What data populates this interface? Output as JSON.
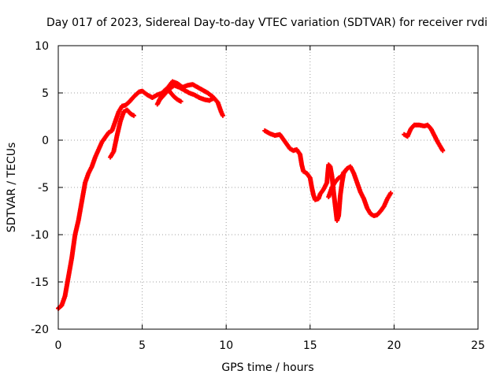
{
  "chart_data": {
    "type": "scatter",
    "title": "Day 017 of 2023, Sidereal Day-to-day VTEC variation (SDTVAR) for receiver rvdi",
    "xlabel": "GPS time / hours",
    "ylabel": "SDTVAR / TECUs",
    "xlim": [
      0,
      25
    ],
    "ylim": [
      -20,
      10
    ],
    "xticks": [
      0,
      5,
      10,
      15,
      20,
      25
    ],
    "yticks": [
      -20,
      -15,
      -10,
      -5,
      0,
      5,
      10
    ],
    "grid": true,
    "marker": "+",
    "series": [
      {
        "name": "SDTVAR",
        "color": "#ff0000",
        "segments": [
          [
            [
              0.0,
              -17.8
            ],
            [
              0.2,
              -17.5
            ],
            [
              0.4,
              -16.5
            ],
            [
              0.6,
              -14.5
            ],
            [
              0.8,
              -12.5
            ],
            [
              1.0,
              -10.0
            ],
            [
              1.2,
              -8.5
            ],
            [
              1.4,
              -6.5
            ],
            [
              1.6,
              -4.5
            ],
            [
              1.8,
              -3.5
            ],
            [
              2.0,
              -2.8
            ],
            [
              2.2,
              -1.8
            ],
            [
              2.4,
              -1.0
            ],
            [
              2.6,
              -0.2
            ],
            [
              2.8,
              0.3
            ],
            [
              3.0,
              0.8
            ],
            [
              3.2,
              1.0
            ],
            [
              3.4,
              2.0
            ],
            [
              3.6,
              3.0
            ],
            [
              3.8,
              3.6
            ],
            [
              4.0,
              3.7
            ],
            [
              4.2,
              4.0
            ],
            [
              4.5,
              4.6
            ],
            [
              4.8,
              5.1
            ],
            [
              5.0,
              5.2
            ],
            [
              5.3,
              4.8
            ],
            [
              5.6,
              4.5
            ],
            [
              5.9,
              4.8
            ],
            [
              6.2,
              5.0
            ],
            [
              6.5,
              5.5
            ],
            [
              6.8,
              6.2
            ],
            [
              7.1,
              6.0
            ],
            [
              7.4,
              5.6
            ],
            [
              7.7,
              5.8
            ],
            [
              8.0,
              5.9
            ],
            [
              8.3,
              5.6
            ],
            [
              8.6,
              5.3
            ],
            [
              8.9,
              5.0
            ],
            [
              9.2,
              4.6
            ],
            [
              9.5,
              4.0
            ],
            [
              9.7,
              3.0
            ],
            [
              9.8,
              2.6
            ]
          ],
          [
            [
              3.1,
              -1.8
            ],
            [
              3.3,
              -1.2
            ],
            [
              3.5,
              0.5
            ],
            [
              3.7,
              2.0
            ],
            [
              3.9,
              3.0
            ],
            [
              4.1,
              3.2
            ],
            [
              4.3,
              2.8
            ],
            [
              4.5,
              2.6
            ]
          ],
          [
            [
              5.9,
              3.8
            ],
            [
              6.1,
              4.5
            ],
            [
              6.3,
              5.2
            ],
            [
              6.5,
              5.5
            ],
            [
              6.7,
              5.0
            ],
            [
              6.9,
              4.6
            ],
            [
              7.1,
              4.3
            ],
            [
              7.3,
              4.1
            ]
          ],
          [
            [
              6.0,
              4.2
            ],
            [
              6.3,
              4.8
            ],
            [
              6.6,
              5.4
            ],
            [
              6.9,
              5.8
            ],
            [
              7.2,
              5.6
            ],
            [
              7.5,
              5.3
            ],
            [
              7.8,
              5.0
            ],
            [
              8.1,
              4.8
            ],
            [
              8.4,
              4.5
            ],
            [
              8.7,
              4.3
            ],
            [
              9.0,
              4.2
            ],
            [
              9.2,
              4.4
            ]
          ],
          [
            [
              12.3,
              1.0
            ],
            [
              12.6,
              0.7
            ],
            [
              12.9,
              0.5
            ],
            [
              13.2,
              0.6
            ],
            [
              13.4,
              0.1
            ],
            [
              13.6,
              -0.4
            ],
            [
              13.8,
              -0.9
            ],
            [
              14.0,
              -1.1
            ],
            [
              14.2,
              -1.0
            ],
            [
              14.4,
              -1.5
            ],
            [
              14.5,
              -2.6
            ],
            [
              14.6,
              -3.3
            ],
            [
              14.8,
              -3.5
            ],
            [
              15.0,
              -4.0
            ],
            [
              15.1,
              -5.0
            ],
            [
              15.2,
              -5.8
            ],
            [
              15.3,
              -6.3
            ],
            [
              15.5,
              -6.2
            ],
            [
              15.6,
              -5.7
            ],
            [
              15.8,
              -5.2
            ],
            [
              16.0,
              -4.5
            ],
            [
              16.05,
              -3.5
            ],
            [
              16.1,
              -2.6
            ],
            [
              16.2,
              -2.8
            ],
            [
              16.3,
              -3.8
            ],
            [
              16.4,
              -5.5
            ],
            [
              16.5,
              -7.0
            ],
            [
              16.6,
              -8.5
            ],
            [
              16.7,
              -8.0
            ],
            [
              16.8,
              -5.8
            ],
            [
              16.9,
              -4.5
            ],
            [
              17.0,
              -3.5
            ],
            [
              17.2,
              -3.0
            ],
            [
              17.4,
              -2.8
            ],
            [
              17.6,
              -3.5
            ],
            [
              17.8,
              -4.5
            ],
            [
              18.0,
              -5.5
            ],
            [
              18.2,
              -6.2
            ],
            [
              18.4,
              -7.2
            ],
            [
              18.6,
              -7.8
            ],
            [
              18.8,
              -8.0
            ],
            [
              19.0,
              -7.9
            ],
            [
              19.2,
              -7.5
            ],
            [
              19.4,
              -7.0
            ],
            [
              19.6,
              -6.2
            ],
            [
              19.8,
              -5.6
            ]
          ],
          [
            [
              16.1,
              -6.0
            ],
            [
              16.3,
              -5.0
            ],
            [
              16.5,
              -4.4
            ],
            [
              16.7,
              -4.0
            ],
            [
              16.9,
              -3.8
            ],
            [
              17.0,
              -3.4
            ]
          ],
          [
            [
              20.6,
              0.6
            ],
            [
              20.8,
              0.4
            ],
            [
              21.0,
              1.2
            ],
            [
              21.2,
              1.6
            ],
            [
              21.5,
              1.6
            ],
            [
              21.8,
              1.5
            ],
            [
              22.0,
              1.6
            ],
            [
              22.2,
              1.2
            ],
            [
              22.4,
              0.5
            ],
            [
              22.6,
              -0.2
            ],
            [
              22.8,
              -0.8
            ],
            [
              22.9,
              -1.1
            ]
          ]
        ]
      }
    ]
  }
}
